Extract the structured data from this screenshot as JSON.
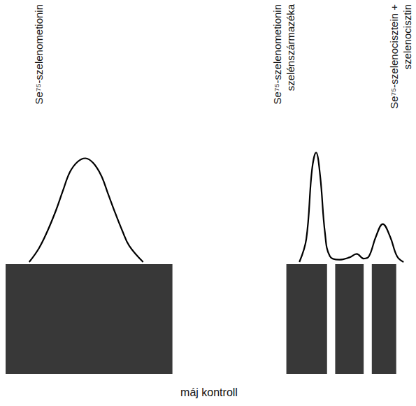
{
  "chart_data": {
    "type": "line",
    "xlabel": "máj kontroll",
    "x": [
      5.8,
      8.2,
      10.3,
      12.4,
      14.1,
      15.8,
      17.7,
      19.6,
      21.5,
      23.5,
      25.2,
      27,
      28.7,
      30.4,
      33.8,
      50,
      72.2,
      73.9,
      75.3,
      76.3,
      77.3,
      78.5,
      79.7,
      82,
      84.5,
      86.3,
      88,
      89.3,
      91,
      92.7,
      94.5,
      96.2,
      97.8
    ],
    "values": [
      0,
      12,
      27,
      45,
      62,
      78,
      87,
      90,
      86,
      75,
      59,
      42,
      27,
      14,
      0,
      null,
      0,
      20,
      80,
      95,
      75,
      25,
      5,
      2,
      4,
      7,
      3,
      5,
      22,
      33,
      22,
      5,
      0
    ],
    "bands": [
      [
        0,
        41
      ],
      [
        69,
        79
      ],
      [
        81,
        88
      ],
      [
        90,
        96
      ]
    ],
    "color": "#000000",
    "xlim": [
      0,
      100
    ],
    "ylim": [
      0,
      100
    ],
    "grid": false,
    "tick_labels": false,
    "annotations": [
      {
        "x": 8.1,
        "lines": [
          "Se⁷⁵-szelenometionin"
        ]
      },
      {
        "x": 68.4,
        "lines": [
          "Se⁷⁵-szelenometionin",
          "szelénszármazéka"
        ]
      },
      {
        "x": 97.0,
        "lines": [
          "Se⁷⁵-szelenocisztein +",
          "szelenocisztin"
        ]
      }
    ]
  }
}
